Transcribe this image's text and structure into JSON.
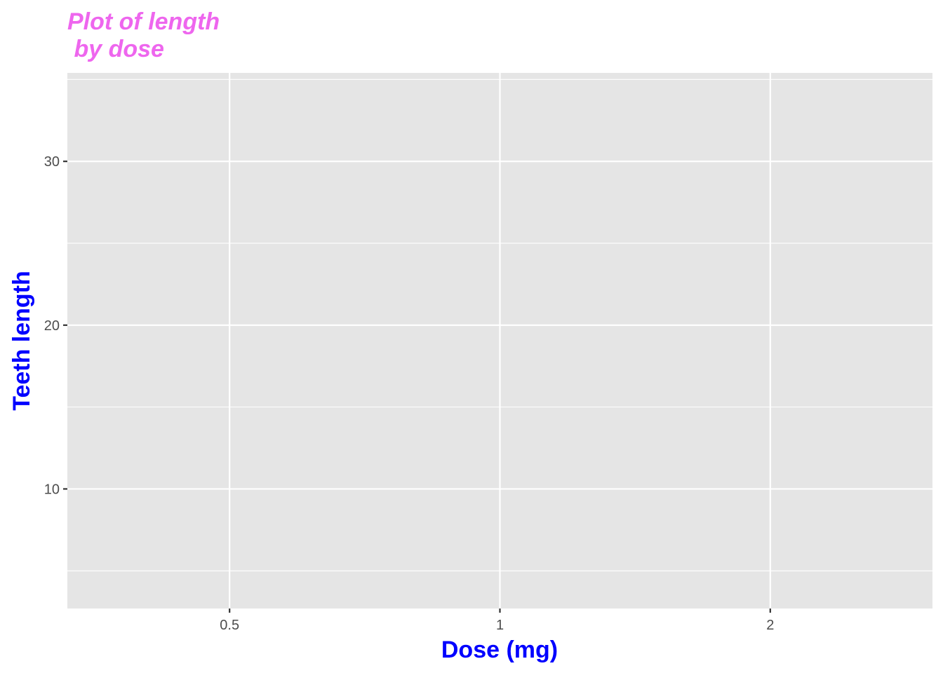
{
  "chart_data": {
    "type": "blank",
    "title": "Plot of length\n by dose",
    "title_lines": [
      "Plot of length",
      " by dose"
    ],
    "xlabel": "Dose (mg)",
    "ylabel": "Teeth length",
    "categories": [
      "0.5",
      "1",
      "2"
    ],
    "yticks": [
      10,
      20,
      30
    ],
    "ytick_labels": [
      "10",
      "20",
      "30"
    ],
    "ylim": [
      2.7,
      35.4
    ],
    "grid": true,
    "colors": {
      "title": "#EE66EE",
      "axis_title": "#0000FF",
      "panel": "#E5E5E5",
      "grid": "#FFFFFF"
    }
  }
}
